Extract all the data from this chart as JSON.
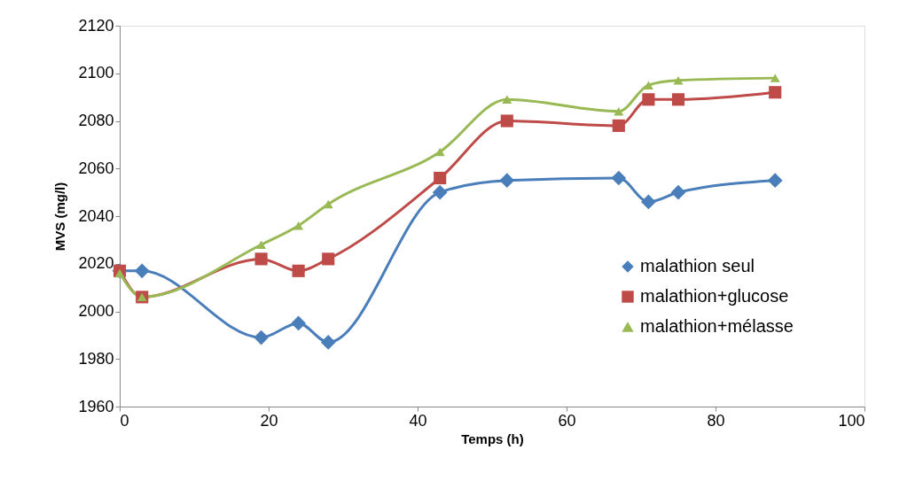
{
  "chart_data": {
    "type": "line",
    "xlabel": "Temps (h)",
    "ylabel": "MVS (mg/l)",
    "xlim": [
      0,
      100
    ],
    "xticks": [
      0,
      20,
      40,
      60,
      80,
      100
    ],
    "ylim": [
      1960,
      2120
    ],
    "yticks": [
      1960,
      1980,
      2000,
      2020,
      2040,
      2060,
      2080,
      2100,
      2120
    ],
    "grid": false,
    "legend": "bottom right",
    "line_style": "solid",
    "series": [
      {
        "name": "malathion seul",
        "color": "#4a7ebb",
        "marker": "diamond",
        "x": [
          0,
          3,
          19,
          24,
          28,
          43,
          52,
          67,
          71,
          75,
          88
        ],
        "values": [
          2017,
          2017,
          1989,
          1995,
          1987,
          2050,
          2055,
          2056,
          2046,
          2050,
          2055
        ]
      },
      {
        "name": "malathion+glucose",
        "color": "#be4b48",
        "marker": "square",
        "x": [
          0,
          3,
          19,
          24,
          28,
          43,
          52,
          67,
          71,
          75,
          88
        ],
        "values": [
          2017,
          2006,
          2022,
          2017,
          2022,
          2056,
          2080,
          2078,
          2089,
          2089,
          2092
        ]
      },
      {
        "name": "malathion+mélasse",
        "color": "#98b954",
        "marker": "triangle",
        "x": [
          0,
          3,
          19,
          24,
          28,
          43,
          52,
          67,
          71,
          75,
          88
        ],
        "values": [
          2016,
          2006,
          2028,
          2036,
          2045,
          2067,
          2089,
          2084,
          2095,
          2097,
          2098
        ]
      }
    ]
  }
}
